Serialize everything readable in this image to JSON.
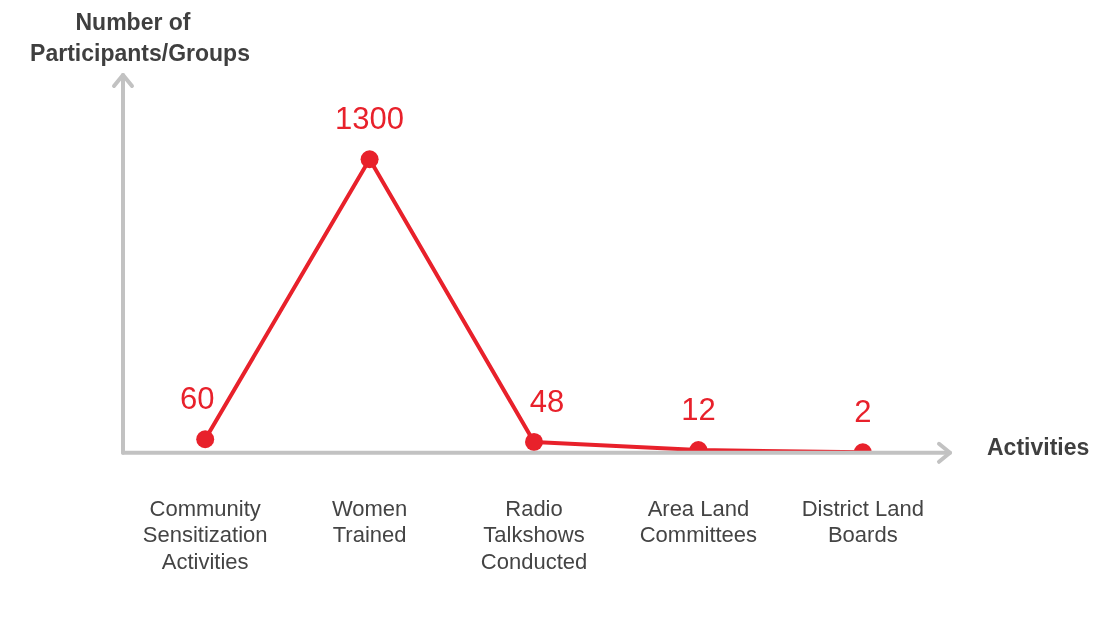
{
  "chart_data": {
    "type": "line",
    "xlabel": "Activities",
    "ylabel": "Number of Participants/Groups",
    "categories": [
      "Community Sensitization Activities",
      "Women Trained",
      "Radio Talkshows Conducted",
      "Area Land Committees",
      "District Land Boards"
    ],
    "series": [
      {
        "color": "#e8212b",
        "values": [
          60,
          1300,
          48,
          12,
          2
        ]
      }
    ],
    "data_labels": true,
    "marker": "circle",
    "line_style": "solid",
    "grid": false,
    "legend": false
  }
}
